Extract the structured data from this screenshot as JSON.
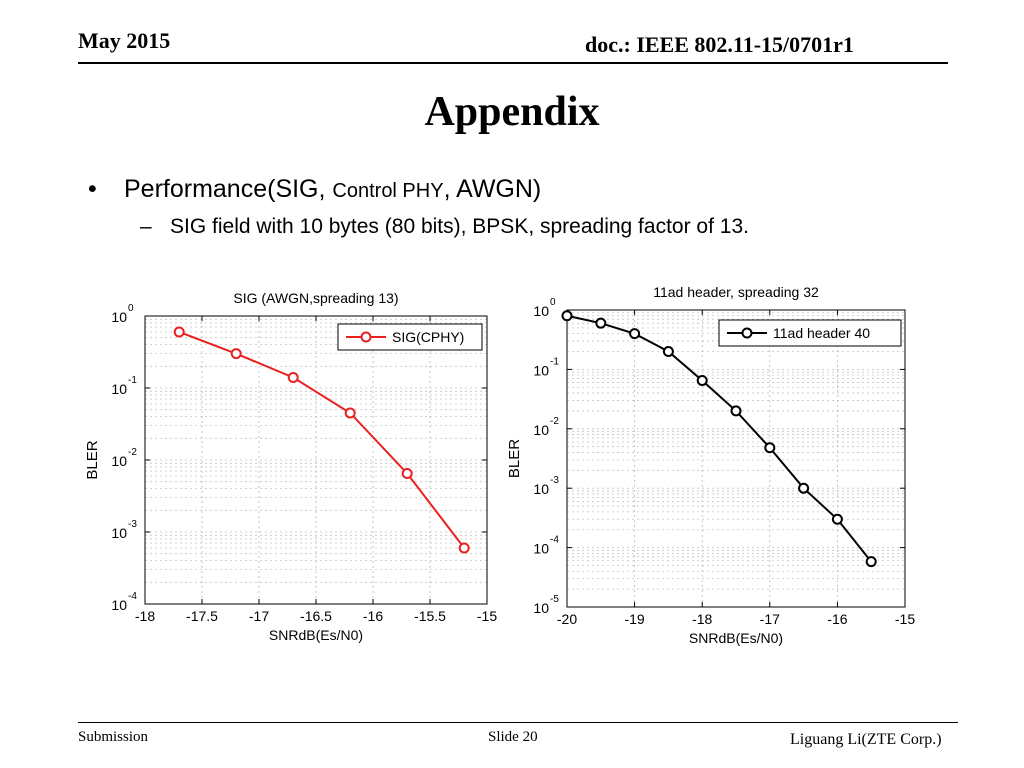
{
  "header": {
    "date": "May 2015",
    "doc": "doc.: IEEE 802.11-15/0701r1"
  },
  "slide": {
    "title": "Appendix",
    "bullet1_a": "Performance(SIG, ",
    "bullet1_b": "Control PHY",
    "bullet1_c": ", AWGN)",
    "bullet2": "SIG field with 10 bytes (80 bits),  BPSK,  spreading factor of 13."
  },
  "footer": {
    "left": "Submission",
    "center": "Slide 20",
    "right": "Liguang Li(ZTE Corp.)"
  },
  "chart_data": [
    {
      "type": "line",
      "title": "SIG (AWGN,spreading 13)",
      "xlabel": "SNRdB(Es/N0)",
      "ylabel": "BLER",
      "xlim": [
        -18,
        -15
      ],
      "ylim": [
        0.0001,
        1
      ],
      "y_scale": "log",
      "grid": true,
      "legend_position": "top-right",
      "x_ticks": [
        "-18",
        "-17.5",
        "-17",
        "-16.5",
        "-16",
        "-15.5",
        "-15"
      ],
      "y_tick_exponents": [
        "0",
        "-1",
        "-2",
        "-3",
        "-4"
      ],
      "series": [
        {
          "name": "SIG(CPHY)",
          "color": "#e8201e",
          "x": [
            -17.7,
            -17.2,
            -16.7,
            -16.2,
            -15.7,
            -15.2
          ],
          "y": [
            0.6,
            0.3,
            0.14,
            0.045,
            0.0065,
            0.0006
          ]
        }
      ]
    },
    {
      "type": "line",
      "title": "11ad header, spreading 32",
      "xlabel": "SNRdB(Es/N0)",
      "ylabel": "BLER",
      "xlim": [
        -20,
        -15
      ],
      "ylim": [
        1e-05,
        1
      ],
      "y_scale": "log",
      "grid": true,
      "legend_position": "top-right",
      "x_ticks": [
        "-20",
        "-19",
        "-18",
        "-17",
        "-16",
        "-15"
      ],
      "y_tick_exponents": [
        "0",
        "-1",
        "-2",
        "-3",
        "-4",
        "-5"
      ],
      "series": [
        {
          "name": "11ad header 40",
          "color": "#000000",
          "x": [
            -20,
            -19.5,
            -19,
            -18.5,
            -18,
            -17.5,
            -17,
            -16.5,
            -16,
            -15.5
          ],
          "y": [
            0.8,
            0.6,
            0.4,
            0.2,
            0.065,
            0.02,
            0.0048,
            0.001,
            0.0003,
            5.8e-05
          ]
        }
      ]
    }
  ]
}
